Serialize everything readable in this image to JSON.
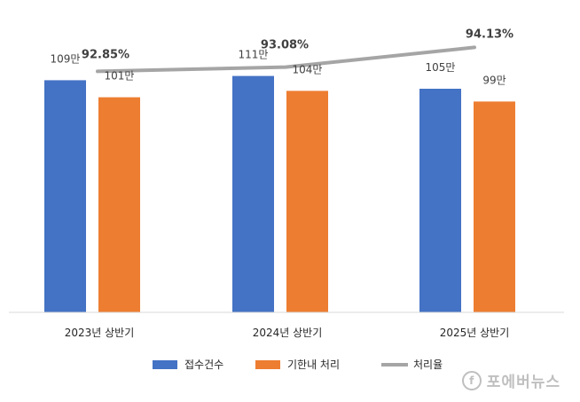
{
  "chart_data": {
    "type": "bar",
    "categories": [
      "2023년 상반기",
      "2024년 상반기",
      "2025년 상반기"
    ],
    "series": [
      {
        "name": "접수건수",
        "kind": "bar",
        "color": "#4472C4",
        "values": [
          109,
          111,
          105
        ],
        "labels": [
          "109만",
          "111만",
          "105만"
        ]
      },
      {
        "name": "기한내 처리",
        "kind": "bar",
        "color": "#ED7D31",
        "values": [
          101,
          104,
          99
        ],
        "labels": [
          "101만",
          "104만",
          "99만"
        ]
      },
      {
        "name": "처리율",
        "kind": "line",
        "color": "#A5A5A5",
        "values": [
          92.85,
          93.08,
          94.13
        ],
        "labels": [
          "92.85%",
          "93.08%",
          "94.13%"
        ]
      }
    ],
    "bar_axis_range": [
      0,
      120
    ],
    "line_axis_range": [
      80,
      95
    ],
    "legend_position": "bottom",
    "grid": false
  },
  "watermark": {
    "logo_text": "f",
    "text": "포에버뉴스"
  }
}
